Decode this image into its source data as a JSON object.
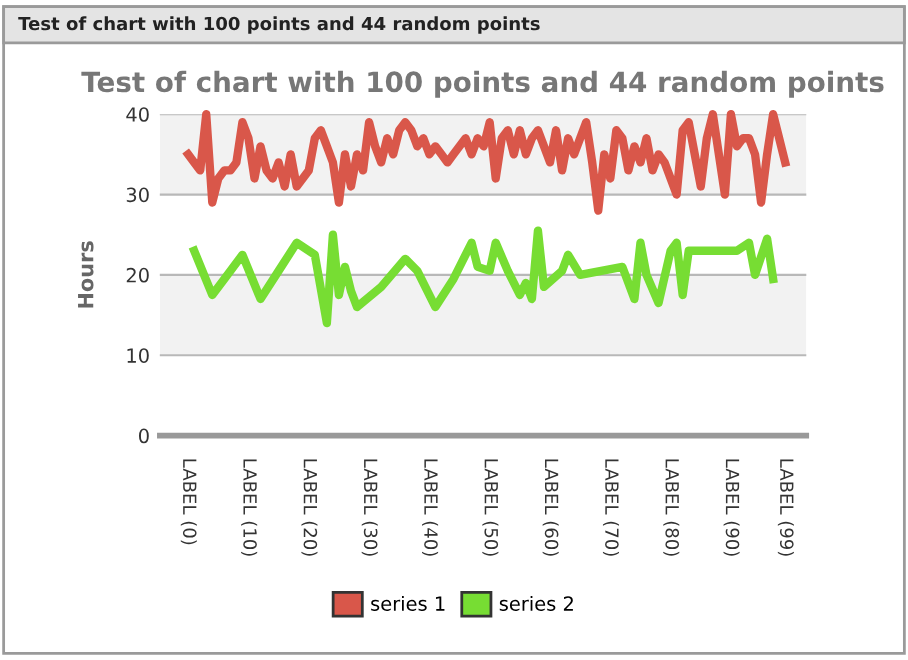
{
  "chart_data": {
    "type": "line",
    "title": "Test of chart with 100 points and 44 random points",
    "ylabel": "Hours",
    "annotations": [
      "Test of chart with 100 points and 44 random points"
    ],
    "categories": [
      "LABEL (0)",
      null,
      null,
      null,
      null,
      null,
      null,
      null,
      null,
      null,
      "LABEL (10)",
      null,
      null,
      null,
      null,
      null,
      null,
      null,
      null,
      null,
      "LABEL (20)",
      null,
      null,
      null,
      null,
      null,
      null,
      null,
      null,
      null,
      "LABEL (30)",
      null,
      null,
      null,
      null,
      null,
      null,
      null,
      null,
      null,
      "LABEL (40)",
      null,
      null,
      null,
      null,
      null,
      null,
      null,
      null,
      null,
      "LABEL (50)",
      null,
      null,
      null,
      null,
      null,
      null,
      null,
      null,
      null,
      "LABEL (60)",
      null,
      null,
      null,
      null,
      null,
      null,
      null,
      null,
      null,
      "LABEL (70)",
      null,
      null,
      null,
      null,
      null,
      null,
      null,
      null,
      null,
      "LABEL (80)",
      null,
      null,
      null,
      null,
      null,
      null,
      null,
      null,
      null,
      "LABEL (90)",
      null,
      null,
      null,
      null,
      null,
      null,
      null,
      null,
      "LABEL (99)"
    ],
    "series": [
      {
        "name": "series 1",
        "color": "#d9574a",
        "values": [
          35,
          34,
          33,
          40,
          29,
          32,
          33,
          33,
          34,
          39,
          37,
          32,
          36,
          33,
          32,
          34,
          31,
          35,
          31,
          32,
          33,
          37,
          38,
          36,
          34,
          29,
          35,
          31,
          35,
          33,
          39,
          36,
          34,
          37,
          35,
          38,
          39,
          38,
          36,
          37,
          35,
          36,
          35,
          34,
          35,
          36,
          37,
          35,
          37,
          36,
          39,
          32,
          37,
          38,
          35,
          38,
          35,
          37,
          38,
          36,
          34,
          38,
          33,
          37,
          35,
          37,
          39,
          34,
          28,
          35,
          32,
          38,
          37,
          33,
          36,
          34,
          37,
          33,
          35,
          34,
          32,
          30,
          38,
          39,
          35,
          31,
          37,
          40,
          35,
          30,
          40,
          36,
          37,
          37,
          35,
          29,
          35,
          40,
          37,
          34
        ]
      },
      {
        "name": "series 2",
        "color": "#77dd33",
        "values": [
          null,
          23,
          null,
          null,
          17.5,
          null,
          19.5,
          null,
          null,
          22.5,
          null,
          null,
          17,
          null,
          null,
          20.5,
          null,
          null,
          24,
          null,
          null,
          22.5,
          null,
          14,
          25,
          17.5,
          21,
          18,
          16,
          null,
          null,
          null,
          18.5,
          null,
          null,
          null,
          22,
          null,
          20.5,
          null,
          null,
          16,
          null,
          null,
          19.5,
          null,
          null,
          24,
          21,
          null,
          20.5,
          24,
          null,
          20.5,
          null,
          17.5,
          19,
          17,
          25.5,
          18.5,
          null,
          null,
          20.5,
          22.5,
          null,
          20,
          null,
          null,
          null,
          null,
          null,
          null,
          21,
          null,
          17,
          24,
          20,
          null,
          16.5,
          null,
          23,
          24,
          17.5,
          23,
          null,
          null,
          null,
          null,
          null,
          null,
          null,
          23,
          null,
          24,
          20,
          null,
          24.5,
          19.5,
          null,
          null
        ]
      }
    ],
    "ylim": [
      0,
      40
    ],
    "yticks": [
      0,
      10,
      20,
      30,
      40
    ],
    "grid": "y",
    "legend": "bottom",
    "marker": "none",
    "line_style": "solid",
    "bands": [
      {
        "axis": "y",
        "from": 10,
        "to": 20,
        "color": "#f2f2f2"
      },
      {
        "axis": "y",
        "from": 30,
        "to": 40,
        "color": "#f2f2f2"
      }
    ]
  }
}
